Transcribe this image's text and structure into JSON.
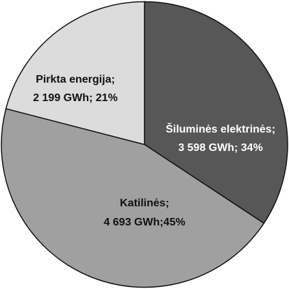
{
  "chart_data": {
    "type": "pie",
    "categories": [
      "Šiluminės elektrinės;",
      "Katilinės;",
      "Pirkta energija;"
    ],
    "values": [
      3598,
      4693,
      2199
    ],
    "value_labels": [
      "3 598 GWh; 34%",
      "4 693 GWh;45%",
      "2 199 GWh; 21%"
    ],
    "colors": [
      "#575757",
      "#a0a0a0",
      "#dcdcdc"
    ]
  }
}
